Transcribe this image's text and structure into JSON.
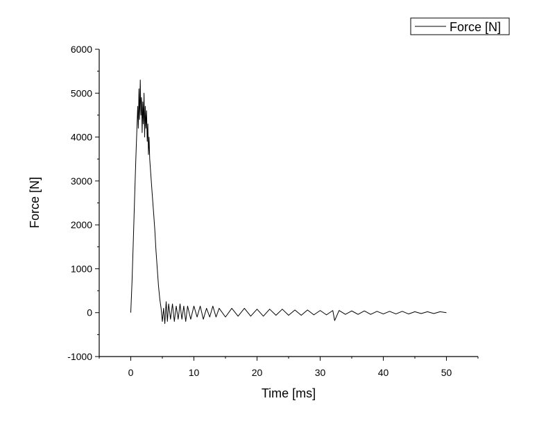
{
  "chart_data": {
    "type": "line",
    "xlabel": "Time [ms]",
    "ylabel": "Force [N]",
    "xlim": [
      -5,
      55
    ],
    "ylim": [
      -1000,
      6000
    ],
    "x_ticks": [
      "0",
      "10",
      "20",
      "30",
      "40",
      "50"
    ],
    "y_ticks": [
      "-1000",
      "0",
      "1000",
      "2000",
      "3000",
      "4000",
      "5000",
      "6000"
    ],
    "legend": {
      "position": "top-right",
      "entries": [
        "Force [N]"
      ]
    },
    "grid": false,
    "series": [
      {
        "name": "Force [N]",
        "color": "#000000",
        "x": [
          0,
          0.2,
          0.4,
          0.6,
          0.8,
          1.0,
          1.1,
          1.2,
          1.3,
          1.4,
          1.5,
          1.6,
          1.7,
          1.8,
          1.9,
          2.0,
          2.1,
          2.2,
          2.3,
          2.4,
          2.5,
          2.6,
          2.7,
          2.8,
          2.9,
          3.0,
          3.2,
          3.4,
          3.6,
          3.8,
          4.0,
          4.2,
          4.4,
          4.6,
          4.8,
          5.0,
          5.2,
          5.4,
          5.6,
          5.8,
          6.0,
          6.3,
          6.6,
          6.9,
          7.2,
          7.5,
          7.8,
          8.1,
          8.4,
          8.7,
          9.0,
          9.5,
          10.0,
          10.5,
          11.0,
          11.5,
          12.0,
          12.5,
          13.0,
          13.5,
          14.0,
          15.0,
          16.0,
          17.0,
          18.0,
          19.0,
          20.0,
          21.0,
          22.0,
          23.0,
          24.0,
          25.0,
          26.0,
          27.0,
          28.0,
          29.0,
          30.0,
          31.0,
          32.0,
          32.3,
          33.0,
          34.0,
          35.0,
          36.0,
          37.0,
          38.0,
          39.0,
          40.0,
          41.0,
          42.0,
          43.0,
          44.0,
          45.0,
          46.0,
          47.0,
          48.0,
          49.0,
          50.0
        ],
        "y": [
          0,
          700,
          1600,
          2600,
          3500,
          4300,
          4700,
          4200,
          5100,
          4400,
          5300,
          4500,
          4900,
          4100,
          4800,
          4300,
          5000,
          4000,
          4700,
          4200,
          4600,
          3900,
          4300,
          3600,
          4000,
          3500,
          3100,
          2700,
          2300,
          1900,
          1400,
          1000,
          600,
          300,
          100,
          -200,
          100,
          -250,
          250,
          -200,
          200,
          -150,
          200,
          -200,
          150,
          -150,
          200,
          -150,
          150,
          -200,
          150,
          -150,
          150,
          -100,
          150,
          -150,
          100,
          -100,
          150,
          -100,
          100,
          -100,
          100,
          -80,
          100,
          -80,
          80,
          -80,
          80,
          -60,
          80,
          -60,
          60,
          -60,
          60,
          -50,
          50,
          -50,
          50,
          -180,
          50,
          -40,
          40,
          -40,
          40,
          -40,
          30,
          -30,
          30,
          -30,
          30,
          -30,
          20,
          -20,
          20,
          -20,
          20,
          0
        ]
      }
    ]
  }
}
